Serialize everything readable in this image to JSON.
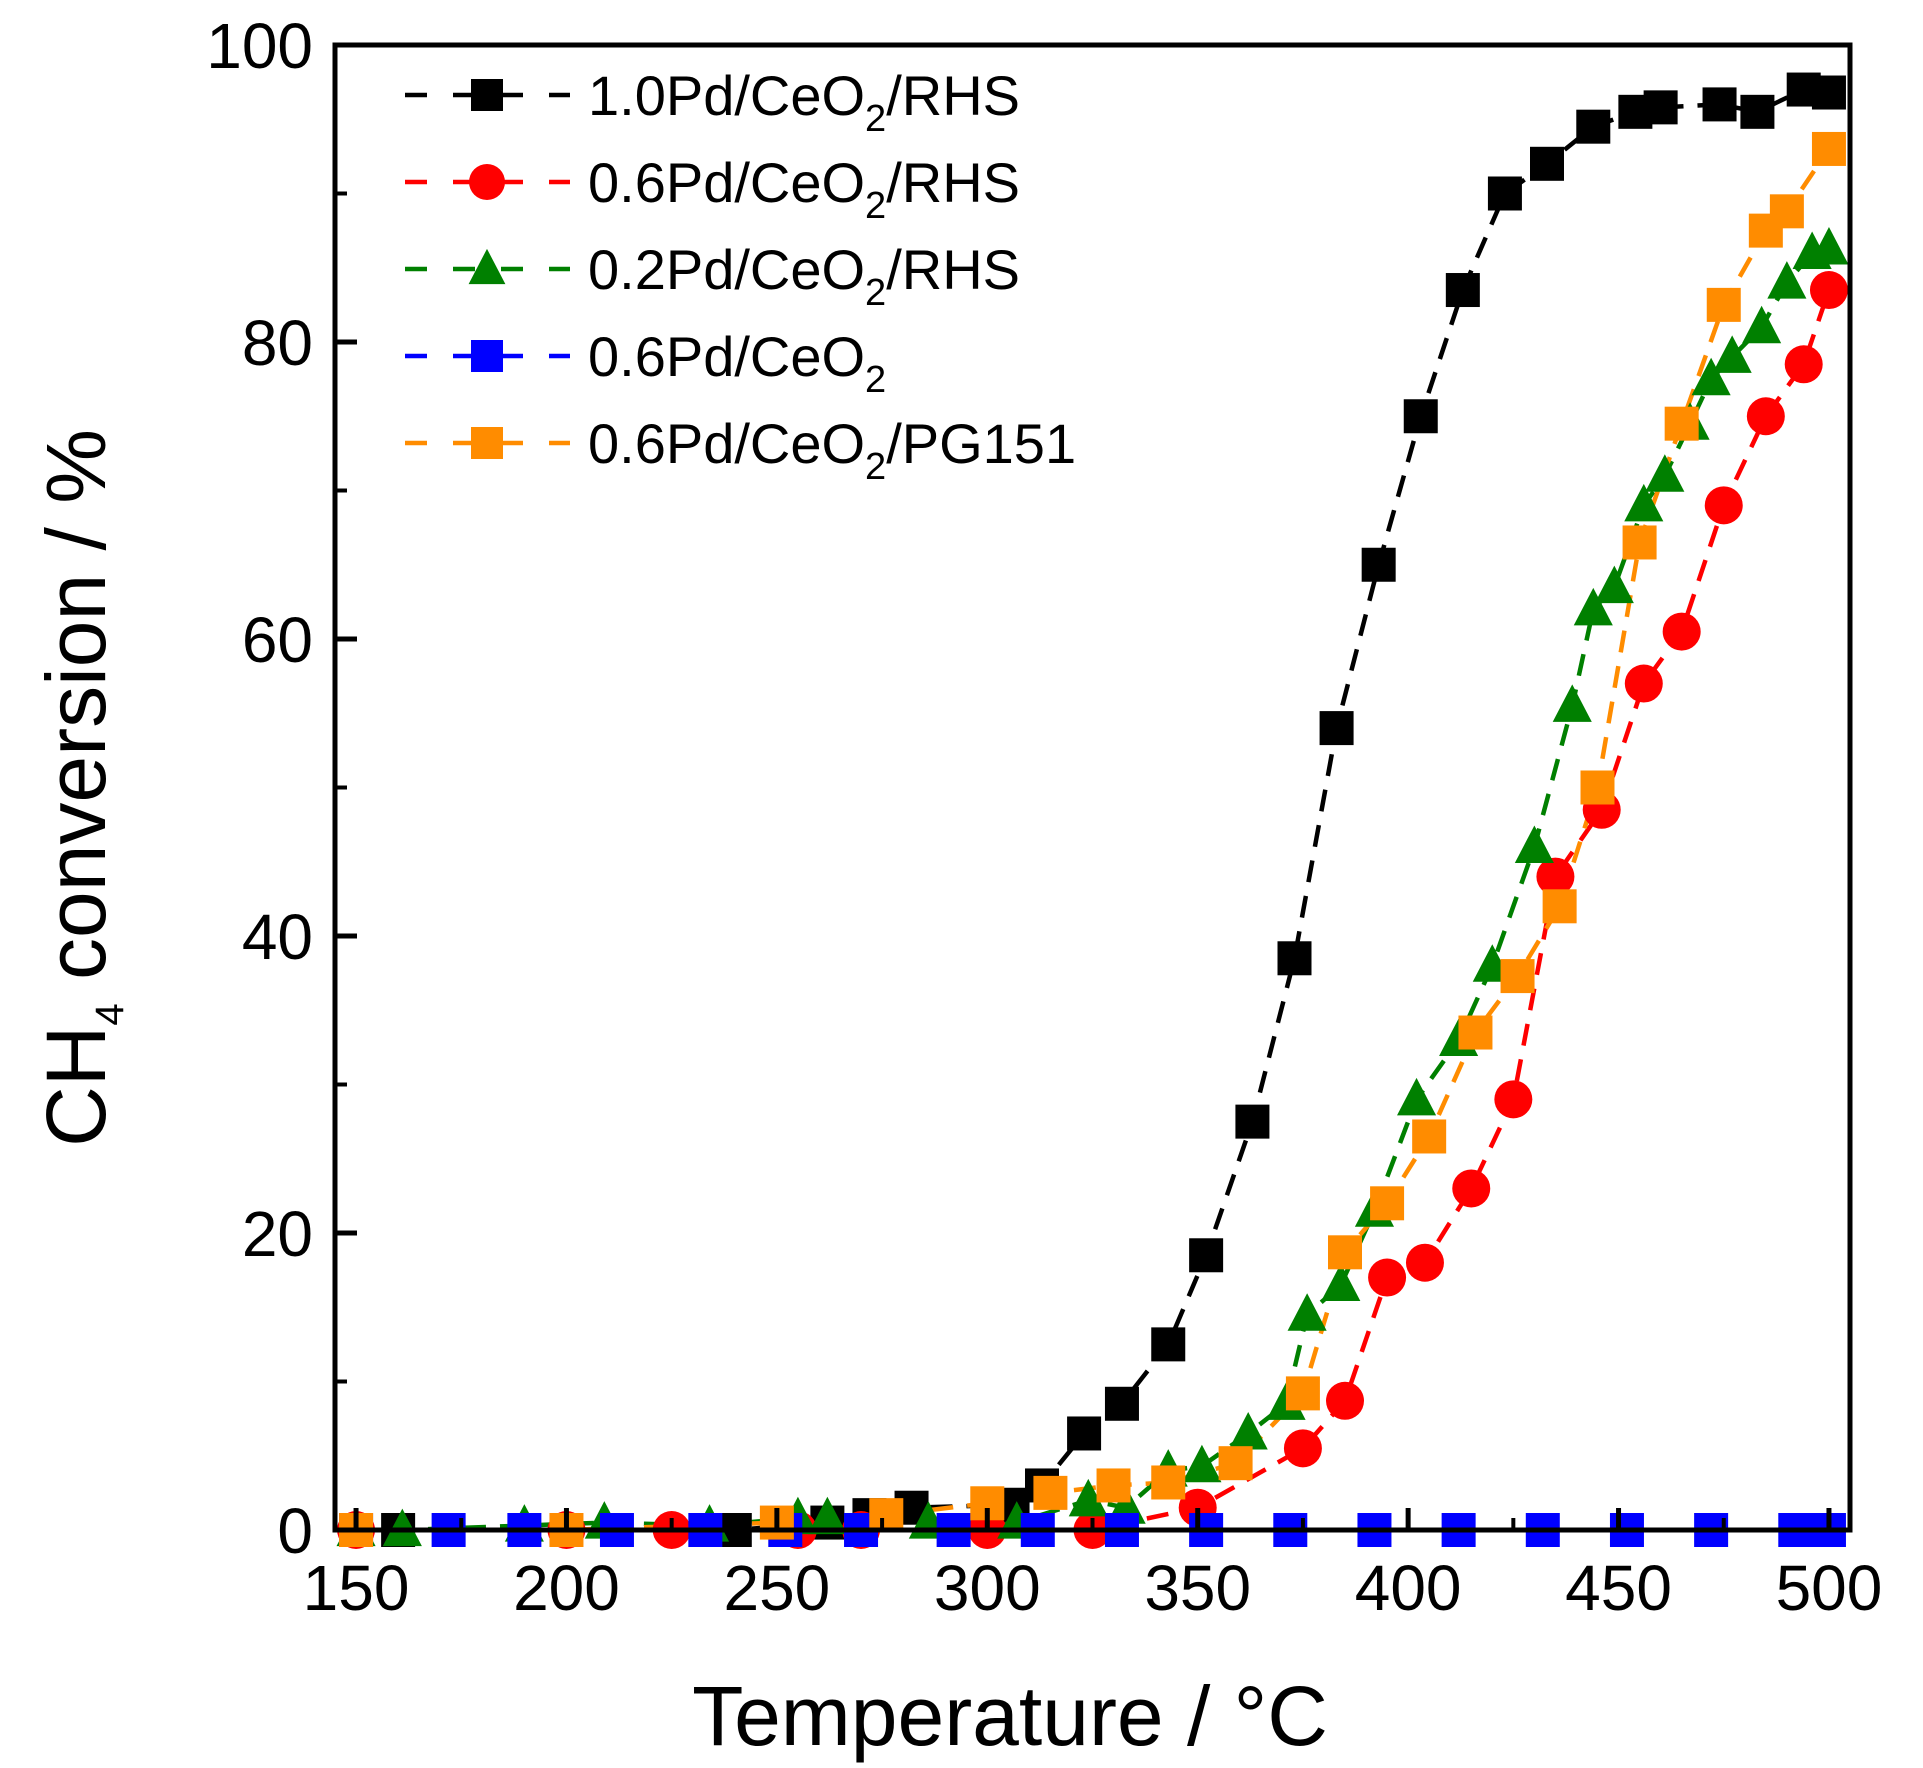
{
  "chart_data": {
    "type": "line",
    "title": "",
    "xlabel": "Temperature / °C",
    "ylabel_parts": {
      "prefix": "CH",
      "subscript": "4",
      "suffix": " conversion / %"
    },
    "xlim": [
      145,
      505
    ],
    "ylim": [
      0,
      100
    ],
    "x_ticks": [
      150,
      200,
      250,
      300,
      350,
      400,
      450,
      500
    ],
    "x_tick_labels": [
      "150",
      "200",
      "250",
      "300",
      "350",
      "400",
      "450",
      "500"
    ],
    "y_ticks": [
      0,
      20,
      40,
      60,
      80,
      100
    ],
    "y_tick_labels": [
      "0",
      "20",
      "40",
      "60",
      "80",
      "100"
    ],
    "grid": false,
    "legend_position": "top-left",
    "series": [
      {
        "name": "1.0Pd/CeO2/RHS",
        "label_parts": {
          "pre": "1.0Pd/CeO",
          "sub": "2",
          "post": "/RHS"
        },
        "color": "#000000",
        "marker": "square",
        "x": [
          150,
          160,
          240,
          262,
          272,
          282,
          306,
          313,
          323,
          332,
          343,
          352,
          363,
          373,
          383,
          393,
          403,
          413,
          423,
          433,
          444,
          454,
          460,
          474,
          483,
          494,
          500
        ],
        "y": [
          0,
          0,
          0,
          0.5,
          1,
          1.5,
          1.7,
          3,
          6.5,
          8.5,
          12.5,
          18.5,
          27.5,
          38.5,
          54,
          65,
          75,
          83.5,
          90,
          92,
          94.5,
          95.5,
          95.8,
          96,
          95.5,
          97,
          96.8
        ]
      },
      {
        "name": "0.6Pd/CeO2/RHS",
        "label_parts": {
          "pre": "0.6Pd/CeO",
          "sub": "2",
          "post": "/RHS"
        },
        "color": "#ff0000",
        "marker": "circle",
        "x": [
          150,
          200,
          225,
          255,
          270,
          300,
          325,
          350,
          375,
          385,
          395,
          404,
          415,
          425,
          435,
          446,
          456,
          465,
          475,
          485,
          494,
          500
        ],
        "y": [
          0,
          0,
          0,
          0,
          0,
          0,
          0,
          1.5,
          5.5,
          8.7,
          17,
          18,
          23,
          29,
          44,
          48.5,
          57,
          60.5,
          69,
          75,
          78.5,
          83.5
        ]
      },
      {
        "name": "0.2Pd/CeO2/RHS",
        "label_parts": {
          "pre": "0.2Pd/CeO",
          "sub": "2",
          "post": "/RHS"
        },
        "color": "#008000",
        "marker": "triangle",
        "x": [
          150,
          161,
          190,
          209,
          234,
          255,
          262,
          286,
          307,
          324,
          333,
          343,
          351,
          362,
          371,
          376,
          384,
          392,
          402,
          412,
          420,
          430,
          439,
          444,
          449,
          456,
          461,
          467,
          472,
          477,
          484,
          490,
          496,
          500
        ],
        "y": [
          0,
          0,
          0.3,
          0.5,
          0.3,
          0.8,
          0.8,
          0.5,
          0.5,
          2,
          1.5,
          4,
          4.3,
          6.5,
          8.5,
          14.5,
          16.5,
          21.5,
          29,
          33,
          38,
          46,
          55.5,
          62,
          63.5,
          69,
          71,
          74.5,
          77.5,
          79,
          81,
          84,
          86,
          86.3
        ]
      },
      {
        "name": "0.6Pd/CeO2",
        "label_parts": {
          "pre": "0.6Pd/CeO",
          "sub": "2",
          "post": ""
        },
        "color": "#0000ff",
        "marker": "square",
        "x": [
          150,
          172,
          190,
          212,
          233,
          252,
          270,
          292,
          312,
          332,
          352,
          372,
          392,
          412,
          432,
          452,
          472,
          492,
          500
        ],
        "y": [
          0,
          0,
          0,
          0,
          0,
          0,
          0,
          0,
          0,
          0,
          0,
          0,
          0,
          0,
          0,
          0,
          0,
          0,
          0
        ]
      },
      {
        "name": "0.6Pd/CeO2/PG151",
        "label_parts": {
          "pre": "0.6Pd/CeO",
          "sub": "2",
          "post": "/PG151"
        },
        "color": "#ff8c00",
        "marker": "square",
        "x": [
          150,
          200,
          250,
          276,
          300,
          315,
          330,
          343,
          359,
          375,
          385,
          395,
          405,
          416,
          426,
          436,
          445,
          455,
          465,
          475,
          485,
          490,
          500
        ],
        "y": [
          0,
          0,
          0.5,
          1,
          1.8,
          2.5,
          3,
          3.2,
          4.5,
          9.2,
          18.7,
          22,
          26.5,
          33.5,
          37.3,
          42,
          50,
          66.5,
          74.5,
          82.5,
          87.5,
          88.8,
          93
        ]
      }
    ]
  }
}
